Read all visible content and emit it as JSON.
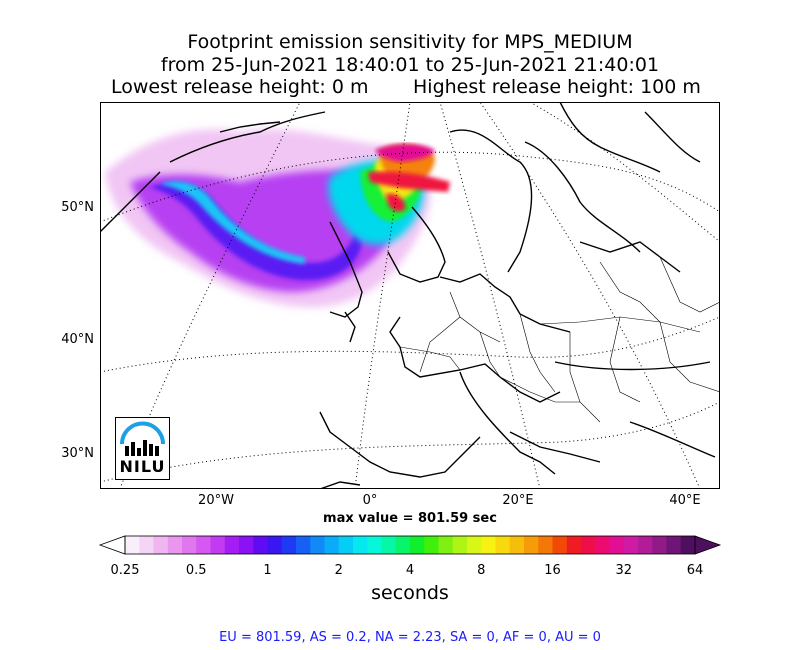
{
  "title": {
    "line1": "Footprint emission sensitivity for MPS_MEDIUM",
    "line2": "from 25-Jun-2021 18:40:01 to 25-Jun-2021 21:40:01",
    "lowest": "Lowest release height: 0 m",
    "highest": "Highest release height: 100 m"
  },
  "map": {
    "lat_labels": [
      "50°N",
      "40°N",
      "30°N"
    ],
    "lon_labels": [
      "20°W",
      "0°",
      "20°E",
      "40°E"
    ],
    "logo_text": "NILU",
    "ocean_color": "#ffffff",
    "coast_color": "#000000"
  },
  "max_value": "max value = 801.59 sec",
  "colorbar": {
    "ticks": [
      "0.25",
      "0.5",
      "1",
      "2",
      "4",
      "8",
      "16",
      "32",
      "64"
    ],
    "unit": "seconds",
    "colors": [
      "#fbeefb",
      "#f5d5f5",
      "#efb6f2",
      "#e996ef",
      "#e077ee",
      "#d658f0",
      "#c43af2",
      "#a41ef3",
      "#8a12f4",
      "#5f0cf2",
      "#3a17f2",
      "#1f3af3",
      "#1660f5",
      "#1189f6",
      "#0aacf7",
      "#06cdf6",
      "#05e8f0",
      "#06f7d9",
      "#06f7a6",
      "#07f46b",
      "#10ef2c",
      "#40ef0c",
      "#7ff012",
      "#aef516",
      "#d8f716",
      "#f7f211",
      "#f7d90e",
      "#f6bd0b",
      "#f59c08",
      "#f37806",
      "#f04a06",
      "#ef1d23",
      "#ef0e4a",
      "#ed0b72",
      "#e20f95",
      "#cf1aa3",
      "#b21c98",
      "#901a88",
      "#6e1575",
      "#4f0f5f"
    ]
  },
  "stats": "EU = 801.59,  AS = 0.2,  NA = 2.23,  SA = 0,  AF = 0,  AU = 0"
}
